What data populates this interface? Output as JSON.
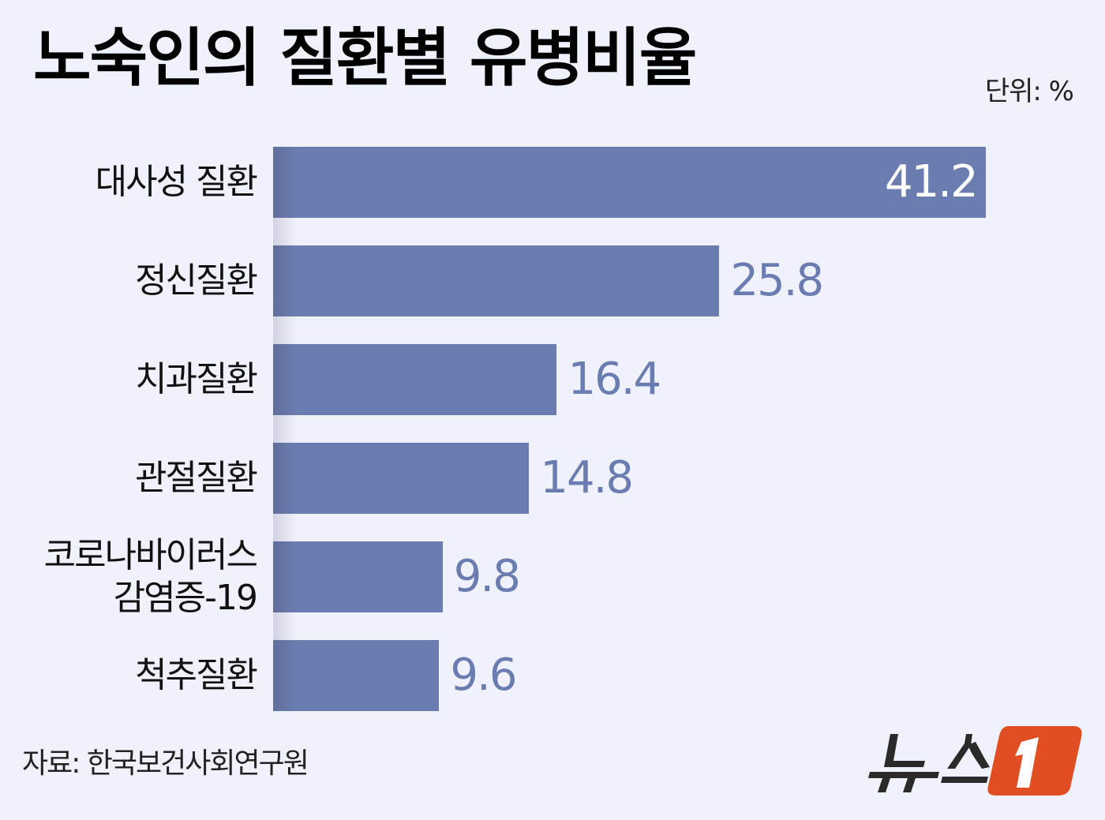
{
  "header": {
    "title": "노숙인의 질환별 유병비율",
    "unit": "단위: %"
  },
  "footer": {
    "source": "자료: 한국보건사회연구원",
    "logo_text": "뉴스",
    "logo_mark": "1"
  },
  "colors": {
    "background": "#eff1fc",
    "bar": "#6b7db0",
    "value_outside": "#6b7db0",
    "value_inside": "#ffffff",
    "logo_orange": "#e04e22",
    "logo_dark": "#2a2a2a"
  },
  "chart_data": {
    "type": "bar",
    "orientation": "horizontal",
    "title": "노숙인의 질환별 유병비율",
    "unit": "%",
    "categories": [
      "대사성 질환",
      "정신질환",
      "치과질환",
      "관절질환",
      "코로나바이러스 감염증-19",
      "척추질환"
    ],
    "values": [
      41.2,
      25.8,
      16.4,
      14.8,
      9.8,
      9.6
    ],
    "xlabel": "",
    "ylabel": "",
    "xlim": [
      0,
      41.2
    ],
    "grid": false,
    "legend": null,
    "source": "자료: 한국보건사회연구원"
  },
  "rows": [
    {
      "label_lines": [
        "대사성 질환"
      ],
      "value": "41.2"
    },
    {
      "label_lines": [
        "정신질환"
      ],
      "value": "25.8"
    },
    {
      "label_lines": [
        "치과질환"
      ],
      "value": "16.4"
    },
    {
      "label_lines": [
        "관절질환"
      ],
      "value": "14.8"
    },
    {
      "label_lines": [
        "코로나바이러스",
        "감염증-19"
      ],
      "value": "9.8"
    },
    {
      "label_lines": [
        "척추질환"
      ],
      "value": "9.6"
    }
  ]
}
